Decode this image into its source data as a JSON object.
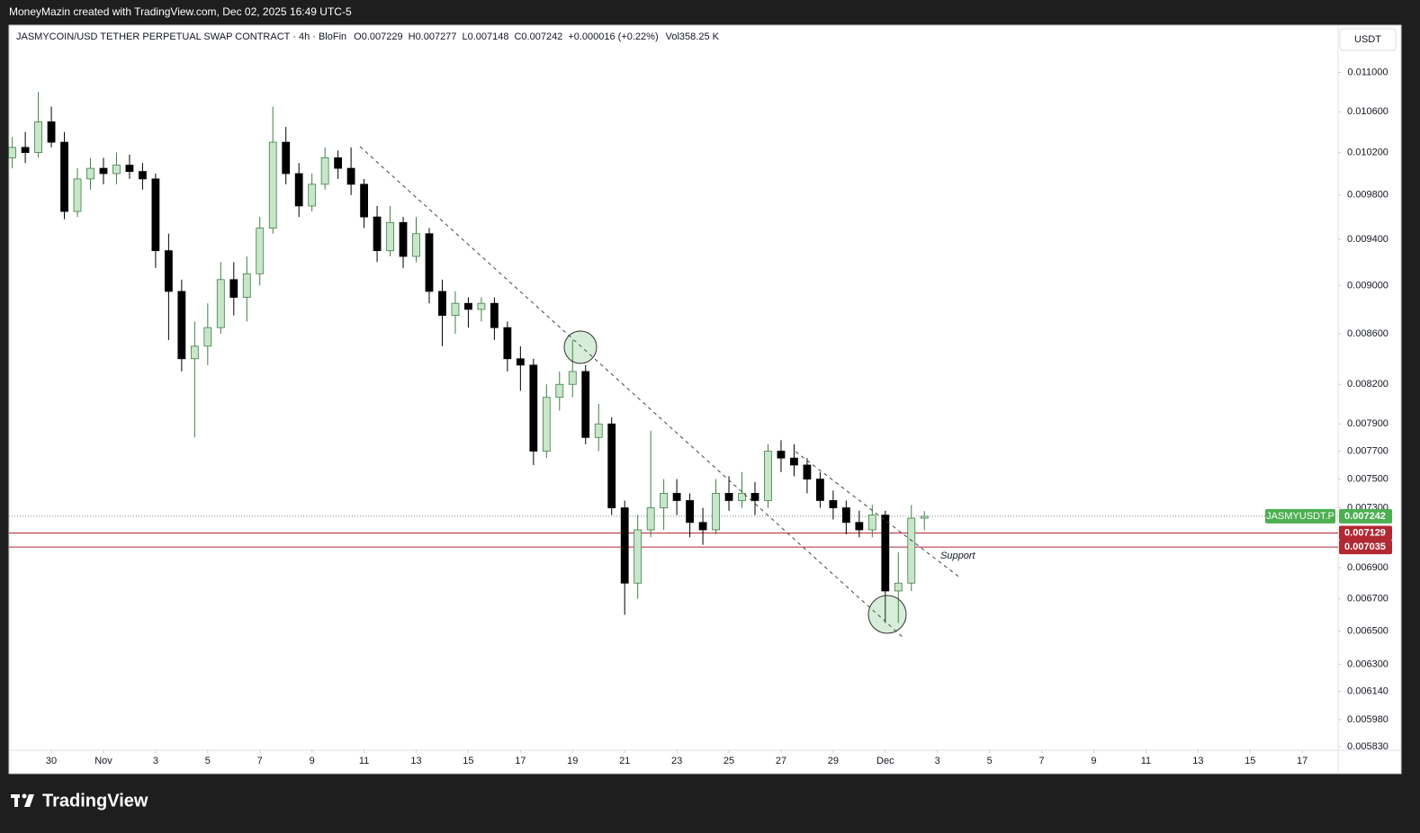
{
  "header": {
    "attribution": "MoneyMazin created with TradingView.com, Dec 02, 2025 16:49 UTC-5"
  },
  "footer": {
    "brand": "TradingView"
  },
  "chart_data": {
    "type": "candlestick",
    "title": "JASMYCOIN/USD TETHER PERPETUAL SWAP CONTRACT · 4h · BloFin",
    "ohlc_labels": [
      "O",
      "H",
      "L",
      "C"
    ],
    "change": "+0.000016 (+0.22%)",
    "volume": "Vol358.25 K",
    "currency": "USDT",
    "symbol": "JASMYUSDT.P",
    "annotations": [
      {
        "text": "Support"
      }
    ],
    "up_color": "#c8e6c9",
    "up_border": "#3f7f45",
    "down_color": "#000000",
    "last_price_color": "#4caf50",
    "levels": [
      {
        "value": 0.007129,
        "color": "#b22833"
      },
      {
        "value": 0.007035,
        "color": "#b22833"
      }
    ],
    "log_scale": true,
    "grid": false,
    "xlim": [
      "2025-10-28T09:00",
      "2025-12-18T09:00"
    ],
    "xticks": [
      {
        "value": "2025-10-30T00:00",
        "label": "30"
      },
      {
        "value": "2025-11-01T00:00",
        "label": "Nov"
      },
      {
        "value": "2025-11-03T00:00",
        "label": "3"
      },
      {
        "value": "2025-11-05T00:00",
        "label": "5"
      },
      {
        "value": "2025-11-07T00:00",
        "label": "7"
      },
      {
        "value": "2025-11-09T00:00",
        "label": "9"
      },
      {
        "value": "2025-11-11T00:00",
        "label": "11"
      },
      {
        "value": "2025-11-13T00:00",
        "label": "13"
      },
      {
        "value": "2025-11-15T00:00",
        "label": "15"
      },
      {
        "value": "2025-11-17T00:00",
        "label": "17"
      },
      {
        "value": "2025-11-19T00:00",
        "label": "19"
      },
      {
        "value": "2025-11-21T00:00",
        "label": "21"
      },
      {
        "value": "2025-11-23T00:00",
        "label": "23"
      },
      {
        "value": "2025-11-25T00:00",
        "label": "25"
      },
      {
        "value": "2025-11-27T00:00",
        "label": "27"
      },
      {
        "value": "2025-11-29T00:00",
        "label": "29"
      },
      {
        "value": "2025-12-01T00:00",
        "label": "Dec"
      },
      {
        "value": "2025-12-03T00:00",
        "label": "3"
      },
      {
        "value": "2025-12-05T00:00",
        "label": "5"
      },
      {
        "value": "2025-12-07T00:00",
        "label": "7"
      },
      {
        "value": "2025-12-09T00:00",
        "label": "9"
      },
      {
        "value": "2025-12-11T00:00",
        "label": "11"
      },
      {
        "value": "2025-12-13T00:00",
        "label": "13"
      },
      {
        "value": "2025-12-15T00:00",
        "label": "15"
      },
      {
        "value": "2025-12-17T00:00",
        "label": "17"
      }
    ],
    "ylim": [
      0.005693,
      0.0115
    ],
    "yticks": [
      {
        "value": 0.011,
        "label": "0.011000"
      },
      {
        "value": 0.0106,
        "label": "0.010600"
      },
      {
        "value": 0.0102,
        "label": "0.010200"
      },
      {
        "value": 0.0098,
        "label": "0.009800"
      },
      {
        "value": 0.0094,
        "label": "0.009400"
      },
      {
        "value": 0.009,
        "label": "0.009000"
      },
      {
        "value": 0.0086,
        "label": "0.008600"
      },
      {
        "value": 0.0082,
        "label": "0.008200"
      },
      {
        "value": 0.0079,
        "label": "0.007900"
      },
      {
        "value": 0.0077,
        "label": "0.007700"
      },
      {
        "value": 0.0075,
        "label": "0.007500"
      },
      {
        "value": 0.0073,
        "label": "0.007300"
      },
      {
        "value": 0.0069,
        "label": "0.006900"
      },
      {
        "value": 0.0067,
        "label": "0.006700"
      },
      {
        "value": 0.0065,
        "label": "0.006500"
      },
      {
        "value": 0.0063,
        "label": "0.006300"
      },
      {
        "value": 0.00614,
        "label": "0.006140"
      },
      {
        "value": 0.00598,
        "label": "0.005980"
      },
      {
        "value": 0.00583,
        "label": "0.005830"
      }
    ],
    "x": [
      "2025-10-28T12:00",
      "2025-10-29T00:00",
      "2025-10-29T12:00",
      "2025-10-30T00:00",
      "2025-10-30T12:00",
      "2025-10-31T00:00",
      "2025-10-31T12:00",
      "2025-11-01T00:00",
      "2025-11-01T12:00",
      "2025-11-02T00:00",
      "2025-11-02T12:00",
      "2025-11-03T00:00",
      "2025-11-03T12:00",
      "2025-11-04T00:00",
      "2025-11-04T12:00",
      "2025-11-05T00:00",
      "2025-11-05T12:00",
      "2025-11-06T00:00",
      "2025-11-06T12:00",
      "2025-11-07T00:00",
      "2025-11-07T12:00",
      "2025-11-08T00:00",
      "2025-11-08T12:00",
      "2025-11-09T00:00",
      "2025-11-09T12:00",
      "2025-11-10T00:00",
      "2025-11-10T12:00",
      "2025-11-11T00:00",
      "2025-11-11T12:00",
      "2025-11-12T00:00",
      "2025-11-12T12:00",
      "2025-11-13T00:00",
      "2025-11-13T12:00",
      "2025-11-14T00:00",
      "2025-11-14T12:00",
      "2025-11-15T00:00",
      "2025-11-15T12:00",
      "2025-11-16T00:00",
      "2025-11-16T12:00",
      "2025-11-17T00:00",
      "2025-11-17T12:00",
      "2025-11-18T00:00",
      "2025-11-18T12:00",
      "2025-11-19T00:00",
      "2025-11-19T12:00",
      "2025-11-20T00:00",
      "2025-11-20T12:00",
      "2025-11-21T00:00",
      "2025-11-21T12:00",
      "2025-11-22T00:00",
      "2025-11-22T12:00",
      "2025-11-23T00:00",
      "2025-11-23T12:00",
      "2025-11-24T00:00",
      "2025-11-24T12:00",
      "2025-11-25T00:00",
      "2025-11-25T12:00",
      "2025-11-26T00:00",
      "2025-11-26T12:00",
      "2025-11-27T00:00",
      "2025-11-27T12:00",
      "2025-11-28T00:00",
      "2025-11-28T12:00",
      "2025-11-29T00:00",
      "2025-11-29T12:00",
      "2025-11-30T00:00",
      "2025-11-30T12:00",
      "2025-12-01T00:00",
      "2025-12-01T12:00",
      "2025-12-02T00:00",
      "2025-12-02T12:00"
    ],
    "open": [
      0.01015,
      0.01025,
      0.0102,
      0.0105,
      0.0103,
      0.00965,
      0.00995,
      0.01005,
      0.01,
      0.01008,
      0.01002,
      0.00995,
      0.0093,
      0.00895,
      0.0084,
      0.0085,
      0.00865,
      0.00905,
      0.0089,
      0.0091,
      0.0095,
      0.0103,
      0.01,
      0.0097,
      0.0099,
      0.01015,
      0.01005,
      0.0099,
      0.0096,
      0.0093,
      0.00955,
      0.00925,
      0.00945,
      0.00895,
      0.00875,
      0.00885,
      0.0088,
      0.00885,
      0.00865,
      0.0084,
      0.00835,
      0.0077,
      0.0081,
      0.0082,
      0.0083,
      0.0078,
      0.0079,
      0.0073,
      0.0068,
      0.00715,
      0.0073,
      0.0074,
      0.00735,
      0.0072,
      0.00715,
      0.0074,
      0.00735,
      0.0074,
      0.00735,
      0.0077,
      0.00765,
      0.0076,
      0.0075,
      0.00735,
      0.0073,
      0.0072,
      0.00715,
      0.00725,
      0.00675,
      0.0068,
      0.007229
    ],
    "high": [
      0.01035,
      0.0104,
      0.0108,
      0.01065,
      0.0104,
      0.01005,
      0.01015,
      0.01015,
      0.0102,
      0.01018,
      0.0101,
      0.01,
      0.00945,
      0.00905,
      0.0087,
      0.00885,
      0.0092,
      0.0092,
      0.00925,
      0.0096,
      0.01065,
      0.01045,
      0.0101,
      0.01,
      0.01025,
      0.01022,
      0.01025,
      0.00995,
      0.0097,
      0.0097,
      0.0096,
      0.0096,
      0.0095,
      0.00905,
      0.00895,
      0.0089,
      0.0089,
      0.0089,
      0.0087,
      0.0085,
      0.0084,
      0.0082,
      0.0083,
      0.00855,
      0.00835,
      0.00805,
      0.00795,
      0.00735,
      0.00725,
      0.00785,
      0.0075,
      0.0075,
      0.0074,
      0.0073,
      0.0075,
      0.00752,
      0.00755,
      0.00748,
      0.00775,
      0.00778,
      0.00775,
      0.00765,
      0.00755,
      0.00742,
      0.00735,
      0.00728,
      0.00732,
      0.00728,
      0.007,
      0.00732,
      0.007277
    ],
    "low": [
      0.01005,
      0.0101,
      0.01015,
      0.01025,
      0.00958,
      0.0096,
      0.00985,
      0.0099,
      0.0099,
      0.00995,
      0.00985,
      0.00915,
      0.00855,
      0.0083,
      0.0078,
      0.00835,
      0.0086,
      0.00875,
      0.0087,
      0.009,
      0.00945,
      0.0099,
      0.0096,
      0.00965,
      0.00985,
      0.00995,
      0.0098,
      0.0095,
      0.0092,
      0.00925,
      0.00915,
      0.0092,
      0.00885,
      0.0085,
      0.0086,
      0.00865,
      0.0087,
      0.00855,
      0.0083,
      0.00815,
      0.0076,
      0.00765,
      0.008,
      0.0081,
      0.00775,
      0.0077,
      0.00725,
      0.0066,
      0.0067,
      0.0071,
      0.00715,
      0.00725,
      0.0071,
      0.00705,
      0.00712,
      0.00728,
      0.0073,
      0.00725,
      0.0073,
      0.00755,
      0.00752,
      0.0074,
      0.0073,
      0.00722,
      0.00712,
      0.0071,
      0.0071,
      0.00655,
      0.00655,
      0.00675,
      0.007148
    ],
    "close": [
      0.01025,
      0.0102,
      0.0105,
      0.0103,
      0.00965,
      0.00995,
      0.01005,
      0.01,
      0.01008,
      0.01002,
      0.00995,
      0.0093,
      0.00895,
      0.0084,
      0.0085,
      0.00865,
      0.00905,
      0.0089,
      0.0091,
      0.0095,
      0.0103,
      0.01,
      0.0097,
      0.0099,
      0.01015,
      0.01005,
      0.0099,
      0.0096,
      0.0093,
      0.00955,
      0.00925,
      0.00945,
      0.00895,
      0.00875,
      0.00885,
      0.0088,
      0.00885,
      0.00865,
      0.0084,
      0.00835,
      0.0077,
      0.0081,
      0.0082,
      0.0083,
      0.0078,
      0.0079,
      0.0073,
      0.0068,
      0.00715,
      0.0073,
      0.0074,
      0.00735,
      0.0072,
      0.00715,
      0.0074,
      0.00735,
      0.0074,
      0.00735,
      0.0077,
      0.00765,
      0.0076,
      0.0075,
      0.00735,
      0.0073,
      0.0072,
      0.00715,
      0.00725,
      0.00675,
      0.0068,
      0.007229,
      0.007242
    ]
  }
}
